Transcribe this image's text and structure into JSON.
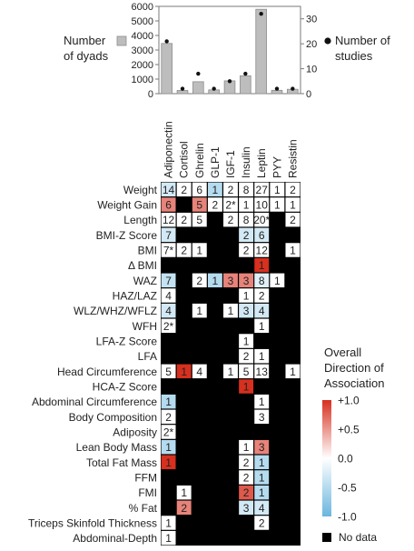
{
  "chart_data": [
    {
      "type": "bar",
      "categories": [
        "Adiponectin",
        "Cortisol",
        "Ghrelin",
        "GLP-1",
        "IGF-1",
        "Insulin",
        "Leptin",
        "PYY",
        "Resistin"
      ],
      "series": [
        {
          "name": "Number of dyads",
          "axis": "left",
          "values": [
            3450,
            220,
            820,
            260,
            880,
            1230,
            5800,
            230,
            300
          ]
        },
        {
          "name": "Number of studies",
          "axis": "right",
          "values": [
            21,
            2,
            8,
            2,
            5,
            8,
            32,
            2,
            2
          ]
        }
      ],
      "ylim_left": [
        0,
        6000
      ],
      "yticks_left": [
        0,
        1000,
        2000,
        3000,
        4000,
        5000,
        6000
      ],
      "ylim_right": [
        0,
        35
      ],
      "yticks_right": [
        0,
        10,
        20,
        30
      ],
      "legend": {
        "bar_label_line1": "Number",
        "bar_label_line2": "of dyads",
        "dot_label_line1": "Number of",
        "dot_label_line2": "studies"
      },
      "colors": {
        "bar": "#bdbdbd",
        "bar_edge": "#8c8c8c",
        "dot": "#111111"
      }
    },
    {
      "type": "heatmap",
      "columns": [
        "Adiponectin",
        "Cortisol",
        "Ghrelin",
        "GLP-1",
        "IGF-1",
        "Insulin",
        "Leptin",
        "PYY",
        "Resistin"
      ],
      "rows": [
        "Weight",
        "Weight Gain",
        "Length",
        "BMI-Z Score",
        "BMI",
        "Δ BMI",
        "WAZ",
        "HAZ/LAZ",
        "WLZ/WHZ/WFLZ",
        "WFH",
        "LFA-Z Score",
        "LFA",
        "Head Circumference",
        "HCA-Z Score",
        "Abdominal Circumference",
        "Body Composition",
        "Adiposity",
        "Lean Body Mass",
        "Total Fat Mass",
        "FFM",
        "FMI",
        "% Fat",
        "Triceps Skinfold Thickness",
        "Abdominal-Depth"
      ],
      "cells": [
        [
          {
            "n": "14",
            "v": -0.3
          },
          {
            "n": "2",
            "v": 0
          },
          {
            "n": "6",
            "v": 0
          },
          {
            "n": "1",
            "v": -0.5
          },
          {
            "n": "2",
            "v": 0
          },
          {
            "n": "8",
            "v": 0
          },
          {
            "n": "27",
            "v": 0
          },
          {
            "n": "1",
            "v": 0
          },
          {
            "n": "2",
            "v": 0
          }
        ],
        [
          {
            "n": "6",
            "v": 0.6
          },
          {
            "n": "",
            "v": null
          },
          {
            "n": "5",
            "v": 0.6
          },
          {
            "n": "2",
            "v": 0
          },
          {
            "n": "2*",
            "v": 0
          },
          {
            "n": "1",
            "v": 0
          },
          {
            "n": "10",
            "v": 0
          },
          {
            "n": "1",
            "v": 0
          },
          {
            "n": "1",
            "v": 0
          }
        ],
        [
          {
            "n": "12",
            "v": 0
          },
          {
            "n": "2",
            "v": 0
          },
          {
            "n": "5",
            "v": 0
          },
          {
            "n": "",
            "v": null
          },
          {
            "n": "2",
            "v": 0
          },
          {
            "n": "8",
            "v": 0
          },
          {
            "n": "20*",
            "v": 0
          },
          {
            "n": "",
            "v": null
          },
          {
            "n": "2",
            "v": 0
          }
        ],
        [
          {
            "n": "7",
            "v": -0.3
          },
          {
            "n": "",
            "v": null
          },
          {
            "n": "",
            "v": null
          },
          {
            "n": "",
            "v": null
          },
          {
            "n": "",
            "v": null
          },
          {
            "n": "2",
            "v": -0.3
          },
          {
            "n": "6",
            "v": -0.3
          },
          {
            "n": "",
            "v": null
          },
          {
            "n": "",
            "v": null
          }
        ],
        [
          {
            "n": "7*",
            "v": 0
          },
          {
            "n": "2",
            "v": 0
          },
          {
            "n": "1",
            "v": 0
          },
          {
            "n": "",
            "v": null
          },
          {
            "n": "",
            "v": null
          },
          {
            "n": "2",
            "v": 0
          },
          {
            "n": "12",
            "v": 0
          },
          {
            "n": "",
            "v": null
          },
          {
            "n": "1",
            "v": 0
          }
        ],
        [
          {
            "n": "",
            "v": null
          },
          {
            "n": "",
            "v": null
          },
          {
            "n": "",
            "v": null
          },
          {
            "n": "",
            "v": null
          },
          {
            "n": "",
            "v": null
          },
          {
            "n": "",
            "v": null
          },
          {
            "n": "1",
            "v": 1.0
          },
          {
            "n": "",
            "v": null
          },
          {
            "n": "",
            "v": null
          }
        ],
        [
          {
            "n": "7",
            "v": -0.4
          },
          {
            "n": "",
            "v": null
          },
          {
            "n": "2",
            "v": 0
          },
          {
            "n": "1",
            "v": -0.5
          },
          {
            "n": "3",
            "v": 0.6
          },
          {
            "n": "3",
            "v": 0.6
          },
          {
            "n": "8",
            "v": -0.2
          },
          {
            "n": "1",
            "v": 0
          },
          {
            "n": "",
            "v": null
          }
        ],
        [
          {
            "n": "4",
            "v": 0
          },
          {
            "n": "",
            "v": null
          },
          {
            "n": "",
            "v": null
          },
          {
            "n": "",
            "v": null
          },
          {
            "n": "",
            "v": null
          },
          {
            "n": "1",
            "v": 0
          },
          {
            "n": "2",
            "v": 0
          },
          {
            "n": "",
            "v": null
          },
          {
            "n": "",
            "v": null
          }
        ],
        [
          {
            "n": "4",
            "v": -0.3
          },
          {
            "n": "",
            "v": null
          },
          {
            "n": "1",
            "v": 0
          },
          {
            "n": "",
            "v": null
          },
          {
            "n": "1",
            "v": 0
          },
          {
            "n": "3",
            "v": -0.3
          },
          {
            "n": "4",
            "v": -0.3
          },
          {
            "n": "",
            "v": null
          },
          {
            "n": "",
            "v": null
          }
        ],
        [
          {
            "n": "2*",
            "v": 0
          },
          {
            "n": "",
            "v": null
          },
          {
            "n": "",
            "v": null
          },
          {
            "n": "",
            "v": null
          },
          {
            "n": "",
            "v": null
          },
          {
            "n": "",
            "v": null
          },
          {
            "n": "1",
            "v": 0
          },
          {
            "n": "",
            "v": null
          },
          {
            "n": "",
            "v": null
          }
        ],
        [
          {
            "n": "",
            "v": null
          },
          {
            "n": "",
            "v": null
          },
          {
            "n": "",
            "v": null
          },
          {
            "n": "",
            "v": null
          },
          {
            "n": "",
            "v": null
          },
          {
            "n": "1",
            "v": 0
          },
          {
            "n": "",
            "v": null
          },
          {
            "n": "",
            "v": null
          },
          {
            "n": "",
            "v": null
          }
        ],
        [
          {
            "n": "",
            "v": null
          },
          {
            "n": "",
            "v": null
          },
          {
            "n": "",
            "v": null
          },
          {
            "n": "",
            "v": null
          },
          {
            "n": "",
            "v": null
          },
          {
            "n": "2",
            "v": 0
          },
          {
            "n": "1",
            "v": 0
          },
          {
            "n": "",
            "v": null
          },
          {
            "n": "",
            "v": null
          }
        ],
        [
          {
            "n": "5",
            "v": 0
          },
          {
            "n": "1",
            "v": 1.0
          },
          {
            "n": "4",
            "v": 0
          },
          {
            "n": "",
            "v": null
          },
          {
            "n": "1",
            "v": 0
          },
          {
            "n": "5",
            "v": 0
          },
          {
            "n": "13",
            "v": 0
          },
          {
            "n": "",
            "v": null
          },
          {
            "n": "1",
            "v": 0
          }
        ],
        [
          {
            "n": "",
            "v": null
          },
          {
            "n": "",
            "v": null
          },
          {
            "n": "",
            "v": null
          },
          {
            "n": "",
            "v": null
          },
          {
            "n": "",
            "v": null
          },
          {
            "n": "1",
            "v": 1.0
          },
          {
            "n": "",
            "v": null
          },
          {
            "n": "",
            "v": null
          },
          {
            "n": "",
            "v": null
          }
        ],
        [
          {
            "n": "1",
            "v": -0.5
          },
          {
            "n": "",
            "v": null
          },
          {
            "n": "",
            "v": null
          },
          {
            "n": "",
            "v": null
          },
          {
            "n": "",
            "v": null
          },
          {
            "n": "",
            "v": null
          },
          {
            "n": "1",
            "v": 0
          },
          {
            "n": "",
            "v": null
          },
          {
            "n": "",
            "v": null
          }
        ],
        [
          {
            "n": "2",
            "v": 0
          },
          {
            "n": "",
            "v": null
          },
          {
            "n": "",
            "v": null
          },
          {
            "n": "",
            "v": null
          },
          {
            "n": "",
            "v": null
          },
          {
            "n": "",
            "v": null
          },
          {
            "n": "3",
            "v": 0
          },
          {
            "n": "",
            "v": null
          },
          {
            "n": "",
            "v": null
          }
        ],
        [
          {
            "n": "2*",
            "v": 0
          },
          {
            "n": "",
            "v": null
          },
          {
            "n": "",
            "v": null
          },
          {
            "n": "",
            "v": null
          },
          {
            "n": "",
            "v": null
          },
          {
            "n": "",
            "v": null
          },
          {
            "n": "",
            "v": null
          },
          {
            "n": "",
            "v": null
          },
          {
            "n": "",
            "v": null
          }
        ],
        [
          {
            "n": "1",
            "v": -0.5
          },
          {
            "n": "",
            "v": null
          },
          {
            "n": "",
            "v": null
          },
          {
            "n": "",
            "v": null
          },
          {
            "n": "",
            "v": null
          },
          {
            "n": "1",
            "v": 0
          },
          {
            "n": "3",
            "v": 0.6
          },
          {
            "n": "",
            "v": null
          },
          {
            "n": "",
            "v": null
          }
        ],
        [
          {
            "n": "1",
            "v": 1.0
          },
          {
            "n": "",
            "v": null
          },
          {
            "n": "",
            "v": null
          },
          {
            "n": "",
            "v": null
          },
          {
            "n": "",
            "v": null
          },
          {
            "n": "2",
            "v": 0
          },
          {
            "n": "1",
            "v": -0.5
          },
          {
            "n": "",
            "v": null
          },
          {
            "n": "",
            "v": null
          }
        ],
        [
          {
            "n": "",
            "v": null
          },
          {
            "n": "",
            "v": null
          },
          {
            "n": "",
            "v": null
          },
          {
            "n": "",
            "v": null
          },
          {
            "n": "",
            "v": null
          },
          {
            "n": "2",
            "v": 0
          },
          {
            "n": "1",
            "v": -0.5
          },
          {
            "n": "",
            "v": null
          },
          {
            "n": "",
            "v": null
          }
        ],
        [
          {
            "n": "",
            "v": null
          },
          {
            "n": "1",
            "v": 0
          },
          {
            "n": "",
            "v": null
          },
          {
            "n": "",
            "v": null
          },
          {
            "n": "",
            "v": null
          },
          {
            "n": "2",
            "v": 0.8
          },
          {
            "n": "1",
            "v": -0.5
          },
          {
            "n": "",
            "v": null
          },
          {
            "n": "",
            "v": null
          }
        ],
        [
          {
            "n": "",
            "v": null
          },
          {
            "n": "2",
            "v": 0.6
          },
          {
            "n": "",
            "v": null
          },
          {
            "n": "",
            "v": null
          },
          {
            "n": "",
            "v": null
          },
          {
            "n": "3",
            "v": -0.3
          },
          {
            "n": "4",
            "v": -0.3
          },
          {
            "n": "",
            "v": null
          },
          {
            "n": "",
            "v": null
          }
        ],
        [
          {
            "n": "1",
            "v": 0
          },
          {
            "n": "",
            "v": null
          },
          {
            "n": "",
            "v": null
          },
          {
            "n": "",
            "v": null
          },
          {
            "n": "",
            "v": null
          },
          {
            "n": "",
            "v": null
          },
          {
            "n": "2",
            "v": 0
          },
          {
            "n": "",
            "v": null
          },
          {
            "n": "",
            "v": null
          }
        ],
        [
          {
            "n": "1",
            "v": 0
          },
          {
            "n": "",
            "v": null
          },
          {
            "n": "",
            "v": null
          },
          {
            "n": "",
            "v": null
          },
          {
            "n": "",
            "v": null
          },
          {
            "n": "",
            "v": null
          },
          {
            "n": "",
            "v": null
          },
          {
            "n": "",
            "v": null
          },
          {
            "n": "",
            "v": null
          }
        ]
      ],
      "colorbar": {
        "title_lines": [
          "Overall",
          "Direction of",
          "Association"
        ],
        "range": [
          -1.0,
          1.0
        ],
        "ticks": [
          "+1.0",
          "+0.5",
          "0.0",
          "-0.5",
          "-1.0"
        ],
        "colors": {
          "positive": "#d7301f",
          "zero": "#ffffff",
          "negative": "#6bb6de",
          "no_data": "#000000"
        }
      },
      "no_data_label": "No data"
    }
  ]
}
